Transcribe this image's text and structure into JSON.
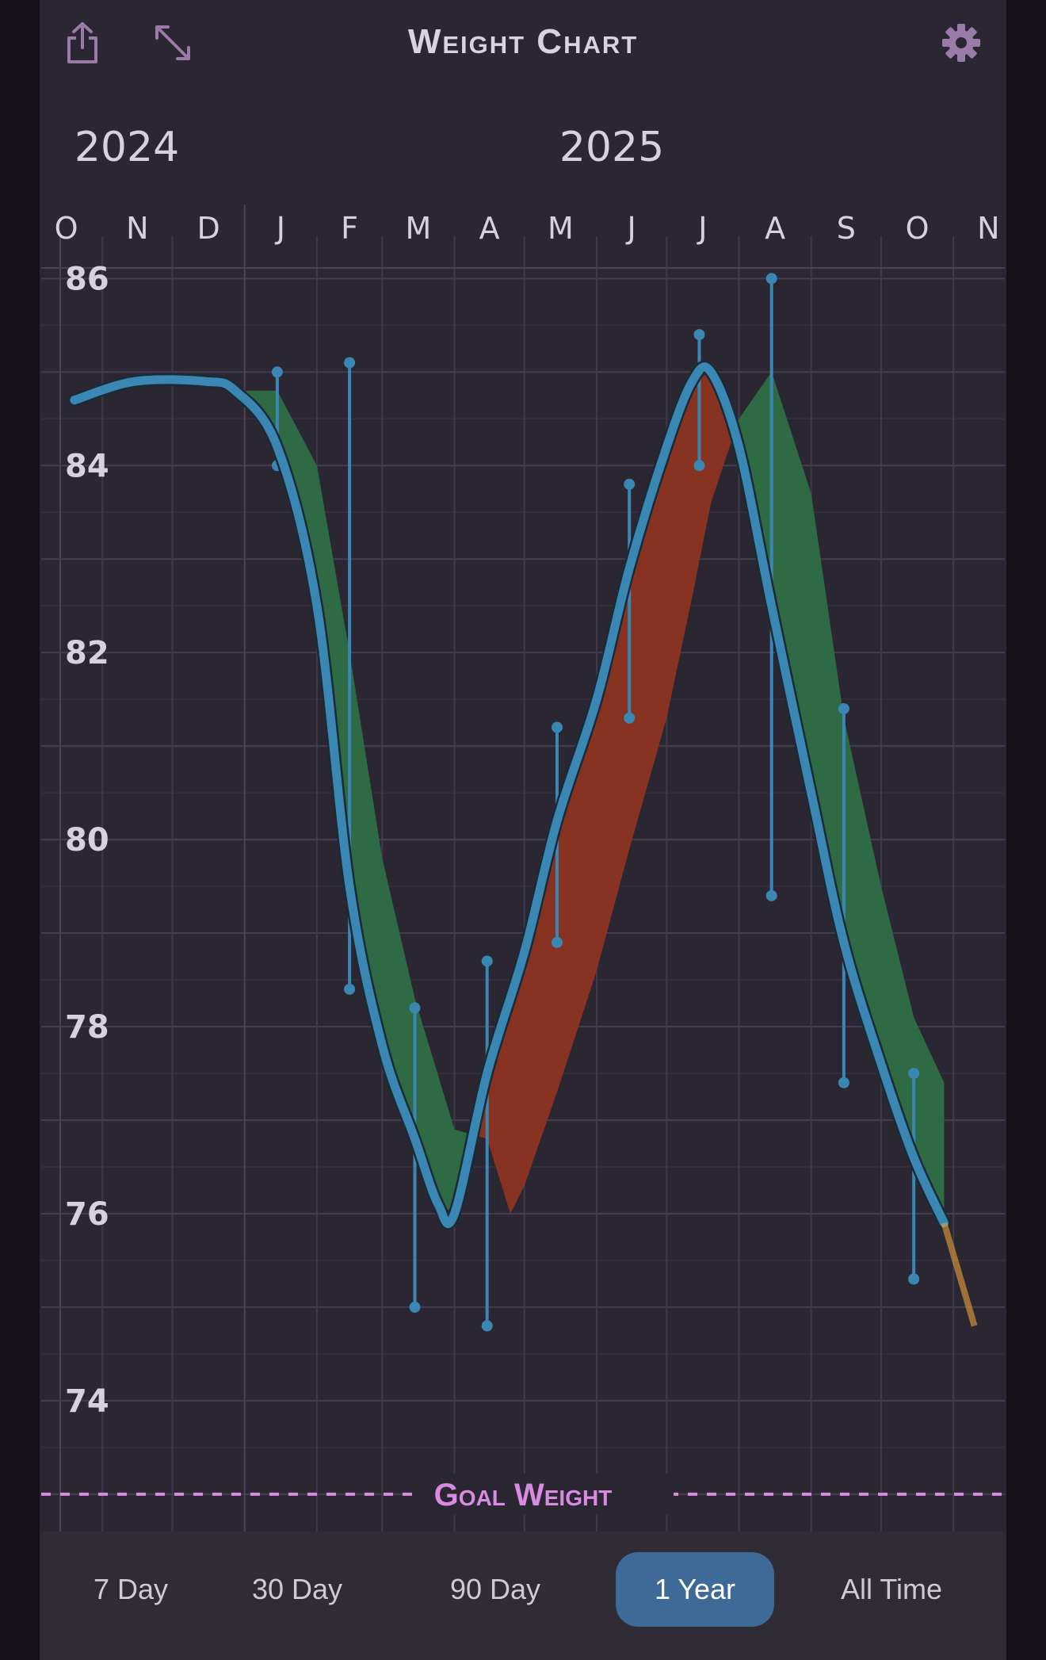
{
  "header": {
    "title": "Weight Chart",
    "share_icon": "share-icon",
    "expand_icon": "expand-icon",
    "settings_icon": "gear-icon"
  },
  "colors": {
    "background": "#2a2732",
    "grid": "#3e3847",
    "trend_line": "#3a87b3",
    "loss_band": "#2e6b45",
    "gain_band": "#883322",
    "goal": "#d88be0",
    "accent_icon": "#9a7aa6",
    "projection": "#e8a23a"
  },
  "range_selector": {
    "options": [
      "7 Day",
      "30 Day",
      "90 Day",
      "1 Year",
      "All Time"
    ],
    "selected": "1 Year"
  },
  "chart_data": {
    "type": "line",
    "years": [
      {
        "label": "2024",
        "month": "2024-11"
      },
      {
        "label": "2025",
        "month": "2025-05"
      }
    ],
    "month_labels": [
      "O",
      "N",
      "D",
      "J",
      "F",
      "M",
      "A",
      "M",
      "J",
      "J",
      "A",
      "S",
      "O",
      "N"
    ],
    "months": [
      "2024-10",
      "2024-11",
      "2024-12",
      "2025-01",
      "2025-02",
      "2025-03",
      "2025-04",
      "2025-05",
      "2025-06",
      "2025-07",
      "2025-08",
      "2025-09",
      "2025-10",
      "2025-11"
    ],
    "ylim": [
      72.6,
      87.3
    ],
    "yticks": [
      74,
      76,
      78,
      80,
      82,
      84,
      86
    ],
    "goal": {
      "label": "Goal Weight",
      "value": 73.0
    },
    "trend": {
      "x": [
        "2024-10-20",
        "2024-11-15",
        "2024-12-15",
        "2024-12-28",
        "2025-01-15",
        "2025-02-01",
        "2025-02-15",
        "2025-03-01",
        "2025-03-15",
        "2025-03-25",
        "2025-04-01",
        "2025-04-15",
        "2025-05-01",
        "2025-05-15",
        "2025-06-01",
        "2025-06-15",
        "2025-07-01",
        "2025-07-12",
        "2025-07-20",
        "2025-08-01",
        "2025-08-15",
        "2025-09-01",
        "2025-09-15",
        "2025-10-01",
        "2025-10-15",
        "2025-10-28"
      ],
      "y": [
        84.7,
        84.9,
        84.9,
        84.8,
        84.2,
        82.5,
        79.5,
        77.8,
        76.8,
        76.1,
        76.0,
        77.5,
        78.8,
        80.2,
        81.5,
        82.9,
        84.2,
        84.9,
        85.0,
        84.2,
        82.5,
        80.5,
        78.9,
        77.6,
        76.6,
        75.9
      ]
    },
    "band": {
      "x": [
        "2024-12-28",
        "2025-01-15",
        "2025-02-01",
        "2025-02-15",
        "2025-03-01",
        "2025-03-15",
        "2025-04-01",
        "2025-04-15",
        "2025-04-25",
        "2025-05-01",
        "2025-05-15",
        "2025-06-01",
        "2025-06-15",
        "2025-07-01",
        "2025-07-12",
        "2025-07-20",
        "2025-08-01",
        "2025-08-15",
        "2025-09-01",
        "2025-09-15",
        "2025-10-01",
        "2025-10-15",
        "2025-10-28"
      ],
      "y": [
        84.8,
        84.8,
        84.0,
        82.0,
        79.8,
        78.3,
        76.9,
        76.8,
        76.0,
        76.3,
        77.3,
        78.6,
        79.9,
        81.3,
        82.6,
        83.6,
        84.5,
        85.0,
        83.7,
        81.3,
        79.5,
        78.1,
        77.4
      ]
    },
    "ranges": [
      {
        "x": "2025-01-15",
        "high": 85.0,
        "low": 84.0
      },
      {
        "x": "2025-02-15",
        "high": 85.1,
        "low": 78.4
      },
      {
        "x": "2025-03-15",
        "high": 78.2,
        "low": 75.0
      },
      {
        "x": "2025-04-15",
        "high": 78.7,
        "low": 74.8
      },
      {
        "x": "2025-05-15",
        "high": 81.2,
        "low": 78.9
      },
      {
        "x": "2025-06-15",
        "high": 83.8,
        "low": 81.3
      },
      {
        "x": "2025-07-15",
        "high": 85.4,
        "low": 84.0
      },
      {
        "x": "2025-08-15",
        "high": 86.0,
        "low": 79.4
      },
      {
        "x": "2025-09-15",
        "high": 81.4,
        "low": 77.4
      },
      {
        "x": "2025-10-15",
        "high": 77.5,
        "low": 75.3
      }
    ],
    "projection": {
      "x": [
        "2025-10-28",
        "2025-11-10"
      ],
      "y": [
        75.9,
        74.8
      ]
    }
  }
}
